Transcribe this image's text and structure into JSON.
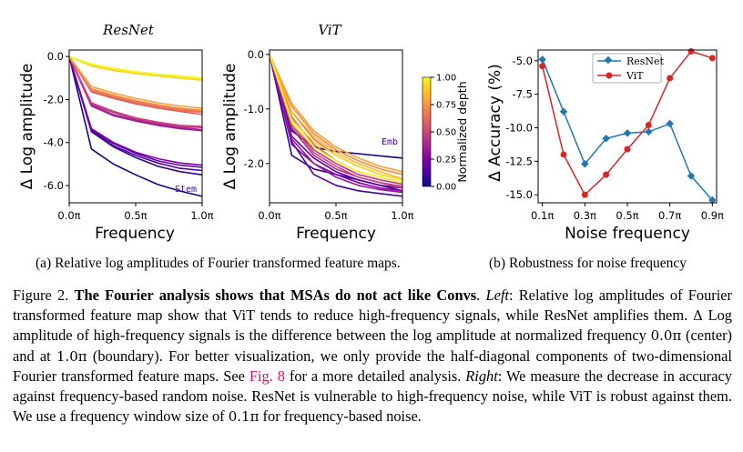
{
  "figure": {
    "subcaption_a": "(a) Relative log amplitudes of Fourier transformed feature maps.",
    "subcaption_b": "(b) Robustness for noise frequency"
  },
  "colors": {
    "resnet": "#1f77b4",
    "vit": "#d62728",
    "colormap": "plasma"
  },
  "chart_data": [
    {
      "type": "line",
      "title": "ResNet",
      "xlabel": "Frequency",
      "ylabel": "Δ Log amplitude",
      "xlim": [
        0,
        1
      ],
      "ylim": [
        -6.8,
        0.3
      ],
      "xticks": [
        0,
        0.5,
        1
      ],
      "xtick_labels": [
        "0.0π",
        "0.5π",
        "1.0π"
      ],
      "yticks": [
        0,
        -2,
        -4,
        -6
      ],
      "ytick_labels": [
        "0.0",
        "-2.0",
        "-4.0",
        "-6.0"
      ],
      "annotation": "Stem",
      "colorscale": "plasma",
      "x": [
        0,
        0.167,
        0.333,
        0.5,
        0.667,
        0.833,
        1.0
      ],
      "series": [
        {
          "depth": 0.0,
          "values": [
            0,
            -4.3,
            -5.0,
            -5.5,
            -5.95,
            -6.25,
            -6.5
          ]
        },
        {
          "depth": 0.08,
          "values": [
            0,
            -3.5,
            -4.2,
            -4.7,
            -5.1,
            -5.35,
            -5.5
          ]
        },
        {
          "depth": 0.12,
          "values": [
            0,
            -3.45,
            -4.15,
            -4.6,
            -4.95,
            -5.2,
            -5.3
          ]
        },
        {
          "depth": 0.17,
          "values": [
            0,
            -3.4,
            -4.05,
            -4.5,
            -4.85,
            -5.05,
            -5.15
          ]
        },
        {
          "depth": 0.25,
          "values": [
            0,
            -3.35,
            -4.0,
            -4.45,
            -4.75,
            -4.95,
            -5.05
          ]
        },
        {
          "depth": 0.33,
          "values": [
            0,
            -2.3,
            -2.75,
            -3.0,
            -3.2,
            -3.35,
            -3.45
          ]
        },
        {
          "depth": 0.38,
          "values": [
            0,
            -2.25,
            -2.7,
            -2.95,
            -3.15,
            -3.3,
            -3.4
          ]
        },
        {
          "depth": 0.44,
          "values": [
            0,
            -2.2,
            -2.6,
            -2.9,
            -3.1,
            -3.25,
            -3.3
          ]
        },
        {
          "depth": 0.5,
          "values": [
            0,
            -2.15,
            -2.55,
            -2.85,
            -3.05,
            -3.2,
            -3.25
          ]
        },
        {
          "depth": 0.58,
          "values": [
            0,
            -1.65,
            -1.95,
            -2.2,
            -2.4,
            -2.55,
            -2.7
          ]
        },
        {
          "depth": 0.63,
          "values": [
            0,
            -1.6,
            -1.9,
            -2.15,
            -2.35,
            -2.5,
            -2.6
          ]
        },
        {
          "depth": 0.67,
          "values": [
            0,
            -1.55,
            -1.85,
            -2.1,
            -2.3,
            -2.45,
            -2.55
          ]
        },
        {
          "depth": 0.72,
          "values": [
            0,
            -1.5,
            -1.8,
            -2.05,
            -2.25,
            -2.4,
            -2.5
          ]
        },
        {
          "depth": 0.78,
          "values": [
            0,
            -1.4,
            -1.7,
            -1.95,
            -2.15,
            -2.3,
            -2.4
          ]
        },
        {
          "depth": 0.9,
          "values": [
            0,
            -0.45,
            -0.65,
            -0.8,
            -0.9,
            -1.0,
            -1.1
          ]
        },
        {
          "depth": 0.95,
          "values": [
            0,
            -0.4,
            -0.6,
            -0.75,
            -0.85,
            -0.95,
            -1.05
          ]
        },
        {
          "depth": 1.0,
          "values": [
            0,
            -0.35,
            -0.55,
            -0.7,
            -0.82,
            -0.9,
            -1.0
          ]
        }
      ]
    },
    {
      "type": "line",
      "title": "ViT",
      "xlabel": "Frequency",
      "ylabel": "Δ Log amplitude",
      "xlim": [
        0,
        1
      ],
      "ylim": [
        -2.72,
        0.08
      ],
      "xticks": [
        0,
        0.5,
        1
      ],
      "xtick_labels": [
        "0.0π",
        "0.5π",
        "1.0π"
      ],
      "yticks": [
        0,
        -1,
        -2
      ],
      "ytick_labels": [
        "0.0",
        "-1.0",
        "-2.0"
      ],
      "annotation": "Emb",
      "colorbar": {
        "label": "Normalized depth",
        "ticks": [
          0,
          0.25,
          0.5,
          0.75,
          1.0
        ],
        "tick_labels": [
          "0.00",
          "0.25",
          "0.50",
          "0.75",
          "1.00"
        ]
      },
      "x": [
        0,
        0.167,
        0.333,
        0.5,
        0.667,
        0.833,
        1.0
      ],
      "series": [
        {
          "depth": 0.0,
          "values": [
            0,
            -1.4,
            -1.7,
            -1.78,
            -1.82,
            -1.86,
            -1.9
          ]
        },
        {
          "depth": 0.08,
          "values": [
            0,
            -1.85,
            -2.1,
            -2.2,
            -2.3,
            -2.4,
            -2.45
          ]
        },
        {
          "depth": 0.12,
          "values": [
            0,
            -1.6,
            -2.2,
            -2.4,
            -2.5,
            -2.55,
            -2.6
          ]
        },
        {
          "depth": 0.17,
          "values": [
            0,
            -1.5,
            -1.9,
            -2.15,
            -2.3,
            -2.4,
            -2.5
          ]
        },
        {
          "depth": 0.25,
          "values": [
            0,
            -1.65,
            -2.0,
            -2.2,
            -2.35,
            -2.45,
            -2.5
          ]
        },
        {
          "depth": 0.33,
          "values": [
            0,
            -1.55,
            -2.0,
            -2.25,
            -2.4,
            -2.48,
            -2.53
          ]
        },
        {
          "depth": 0.4,
          "values": [
            0,
            -1.35,
            -1.85,
            -2.1,
            -2.25,
            -2.35,
            -2.42
          ]
        },
        {
          "depth": 0.45,
          "values": [
            0,
            -1.25,
            -1.75,
            -2.0,
            -2.2,
            -2.3,
            -2.38
          ]
        },
        {
          "depth": 0.5,
          "values": [
            0,
            -1.3,
            -1.8,
            -2.05,
            -2.25,
            -2.35,
            -2.45
          ]
        },
        {
          "depth": 0.58,
          "values": [
            0,
            -1.15,
            -1.65,
            -1.95,
            -2.15,
            -2.25,
            -2.35
          ]
        },
        {
          "depth": 0.65,
          "values": [
            0,
            -1.05,
            -1.55,
            -1.85,
            -2.05,
            -2.2,
            -2.3
          ]
        },
        {
          "depth": 0.72,
          "values": [
            0,
            -0.95,
            -1.45,
            -1.75,
            -1.95,
            -2.1,
            -2.2
          ]
        },
        {
          "depth": 0.78,
          "values": [
            0,
            -0.9,
            -1.4,
            -1.7,
            -1.9,
            -2.05,
            -2.15
          ]
        },
        {
          "depth": 0.85,
          "values": [
            0,
            -1.05,
            -1.5,
            -1.8,
            -2.0,
            -2.15,
            -2.28
          ]
        },
        {
          "depth": 0.92,
          "values": [
            0,
            -1.2,
            -1.6,
            -1.85,
            -2.05,
            -2.2,
            -2.3
          ]
        },
        {
          "depth": 1.0,
          "values": [
            0,
            -1.25,
            -1.7,
            -1.95,
            -2.15,
            -2.25,
            -2.35
          ]
        }
      ]
    },
    {
      "type": "line",
      "xlabel": "Noise frequency",
      "ylabel": "Δ Accuracy (%)",
      "xlim": [
        0.08,
        0.92
      ],
      "ylim": [
        -15.6,
        -4.2
      ],
      "xticks": [
        0.1,
        0.3,
        0.5,
        0.7,
        0.9
      ],
      "xtick_labels": [
        "0.1π",
        "0.3π",
        "0.5π",
        "0.7π",
        "0.9π"
      ],
      "yticks": [
        -5,
        -7.5,
        -10,
        -12.5,
        -15
      ],
      "ytick_labels": [
        "-5.0",
        "-7.5",
        "-10.0",
        "-12.5",
        "-15.0"
      ],
      "legend_position": "top-left",
      "x": [
        0.1,
        0.2,
        0.3,
        0.4,
        0.5,
        0.6,
        0.7,
        0.8,
        0.9
      ],
      "series": [
        {
          "name": "ResNet",
          "marker": "diamond",
          "values": [
            -4.9,
            -8.8,
            -12.7,
            -10.8,
            -10.4,
            -10.3,
            -9.7,
            -13.6,
            -15.4
          ]
        },
        {
          "name": "ViT",
          "marker": "circle",
          "values": [
            -5.4,
            -12.0,
            -15.0,
            -13.5,
            -11.6,
            -9.8,
            -6.3,
            -4.3,
            -4.8
          ]
        }
      ]
    }
  ]
}
